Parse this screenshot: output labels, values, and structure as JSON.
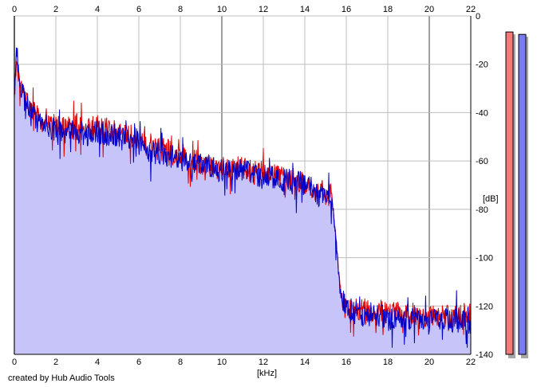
{
  "credit": "created by Hub Audio Tools",
  "chart_data": {
    "type": "line",
    "xlabel": "[kHz]",
    "ylabel": "[dB]",
    "xlim": [
      0,
      22
    ],
    "ylim": [
      -140,
      0
    ],
    "x_ticks": [
      "0",
      "2",
      "4",
      "6",
      "8",
      "10",
      "12",
      "14",
      "16",
      "18",
      "20",
      "22"
    ],
    "y_ticks": [
      "0",
      "-20",
      "-40",
      "-60",
      "-80",
      "-100",
      "-120",
      "-140"
    ],
    "grid": true,
    "fill_color": "#c6c4f8",
    "series": [
      {
        "color": "#e00000",
        "x": [
          0,
          0.1,
          0.25,
          0.5,
          0.75,
          1,
          1.5,
          2,
          2.5,
          3,
          3.5,
          4,
          4.5,
          5,
          5.5,
          6,
          6.5,
          7,
          7.5,
          8,
          8.5,
          9,
          9.5,
          10,
          10.5,
          11,
          11.5,
          12,
          12.5,
          13,
          13.5,
          14,
          14.5,
          15,
          15.3,
          15.5,
          15.7,
          16,
          16.5,
          17,
          17.5,
          18,
          18.5,
          19,
          19.5,
          20,
          20.5,
          21,
          21.5,
          22
        ],
        "values": [
          -32,
          -18,
          -27,
          -34,
          -38,
          -41,
          -43,
          -45,
          -46,
          -46,
          -47,
          -46,
          -47,
          -48,
          -49,
          -52,
          -55,
          -55,
          -56,
          -57,
          -59,
          -61,
          -62,
          -63,
          -63,
          -63,
          -65,
          -65,
          -66,
          -67,
          -67,
          -69,
          -73,
          -74,
          -74,
          -92,
          -113,
          -120,
          -121,
          -122,
          -122,
          -123,
          -123,
          -123,
          -123,
          -124,
          -124,
          -124,
          -124,
          -123
        ]
      },
      {
        "color": "#0000c8",
        "x": [
          0,
          0.1,
          0.25,
          0.5,
          0.75,
          1,
          1.5,
          2,
          2.5,
          3,
          3.5,
          4,
          4.5,
          5,
          5.5,
          6,
          6.5,
          7,
          7.5,
          8,
          8.5,
          9,
          9.5,
          10,
          10.5,
          11,
          11.5,
          12,
          12.5,
          13,
          13.5,
          14,
          14.5,
          15,
          15.3,
          15.5,
          15.7,
          16,
          16.5,
          17,
          17.5,
          18,
          18.5,
          19,
          19.5,
          20,
          20.5,
          21,
          21.5,
          22
        ],
        "values": [
          -34,
          -14,
          -27,
          -35,
          -40,
          -43,
          -45,
          -47,
          -48,
          -48,
          -49,
          -48,
          -49,
          -50,
          -51,
          -54,
          -56,
          -57,
          -58,
          -59,
          -61,
          -62,
          -63,
          -64,
          -64,
          -64,
          -66,
          -66,
          -67,
          -68,
          -68,
          -70,
          -74,
          -75,
          -75,
          -92,
          -114,
          -122,
          -123,
          -124,
          -124,
          -125,
          -125,
          -125,
          -125,
          -126,
          -126,
          -126,
          -126,
          -125
        ]
      }
    ],
    "level_meters": [
      {
        "color": "#f47a7a",
        "level_db": -4
      },
      {
        "color": "#7b7bf1",
        "level_db": -5
      }
    ]
  }
}
